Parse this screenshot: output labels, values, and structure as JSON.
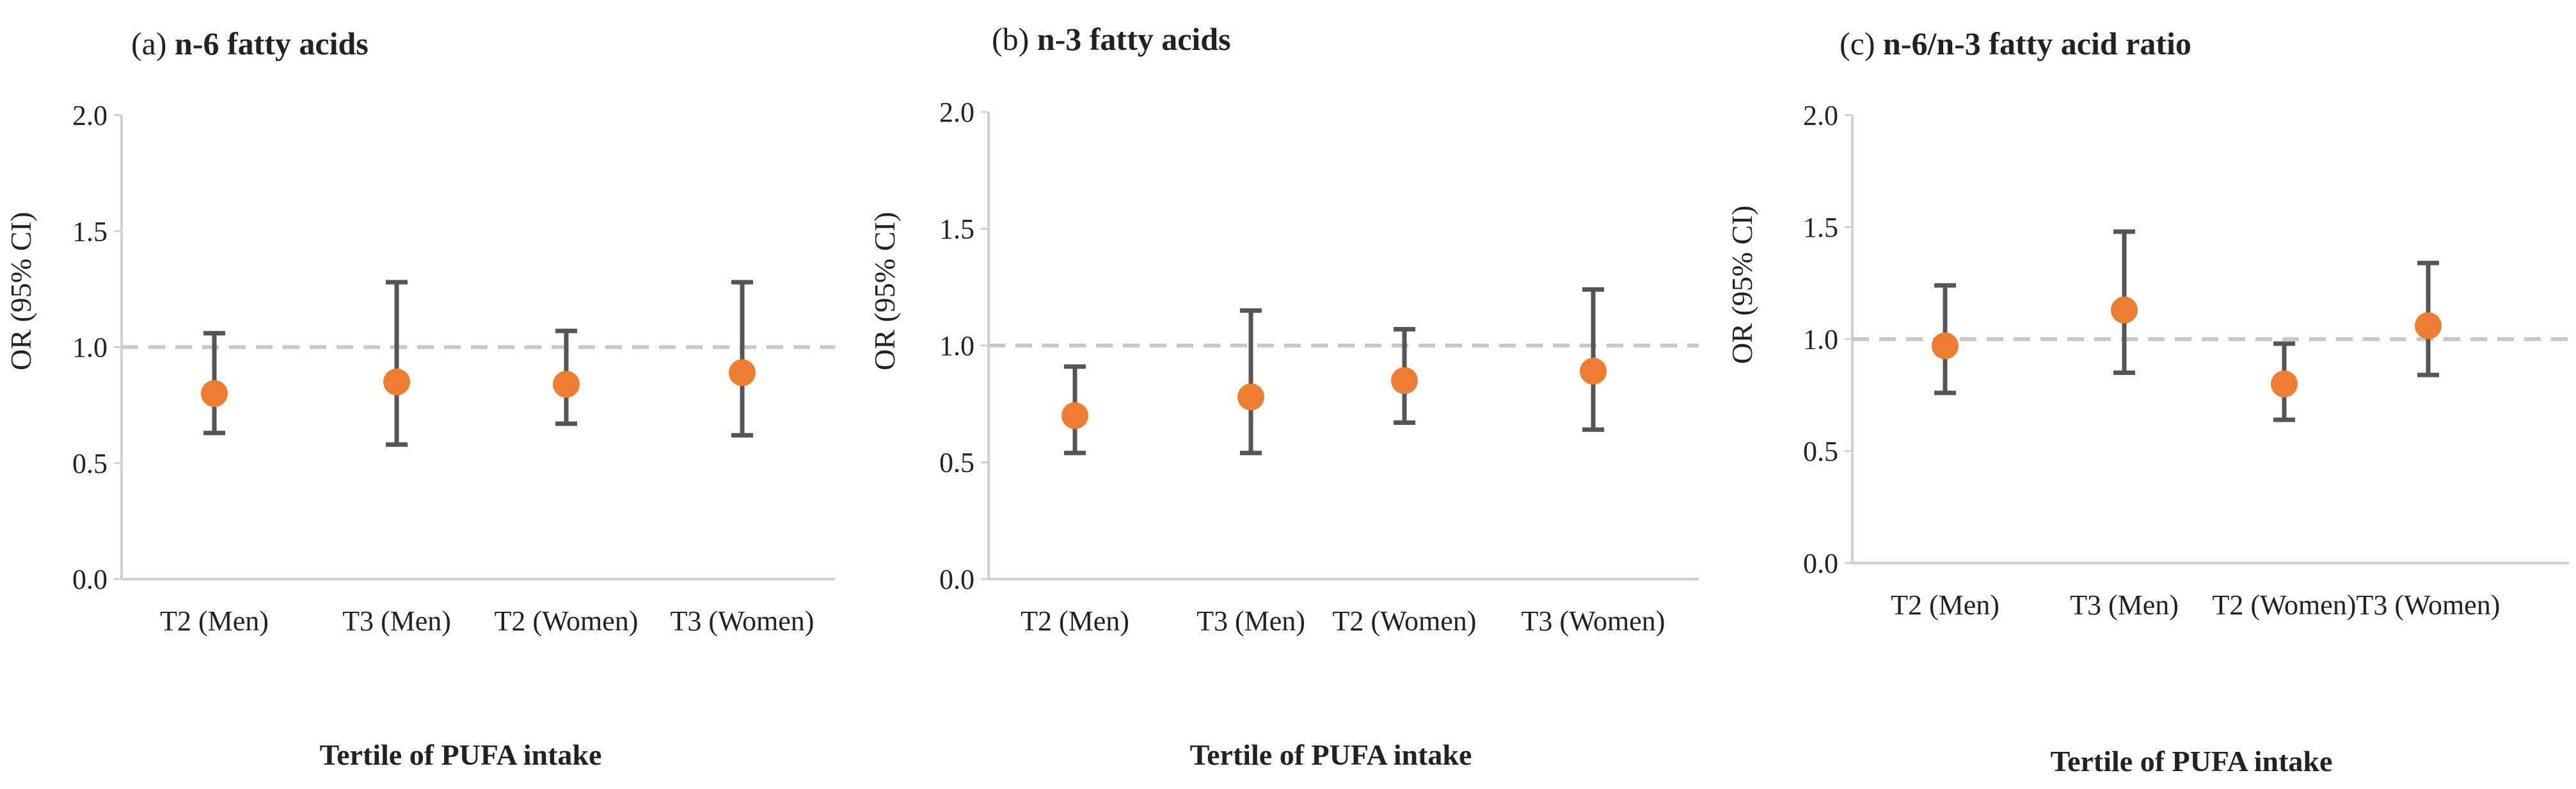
{
  "colors": {
    "point": "#ED7D31",
    "error_bar": "#555555",
    "reference_line": "#C8C8C8",
    "axis": "#D0D0D0",
    "text": "#222222"
  },
  "chart_data": [
    {
      "type": "scatter",
      "panel_label": "(a)",
      "title": "n-6 fatty acids",
      "xlabel": "Tertile of PUFA intake",
      "ylabel": "OR (95% CI)",
      "categories": [
        "T2 (Men)",
        "T3 (Men)",
        "T2 (Women)",
        "T3 (Women)"
      ],
      "values": [
        0.8,
        0.85,
        0.84,
        0.89
      ],
      "ci_lower": [
        0.63,
        0.58,
        0.67,
        0.62
      ],
      "ci_upper": [
        1.06,
        1.28,
        1.07,
        1.28
      ],
      "reference_line": 1.0,
      "ylim": [
        0,
        2.0
      ],
      "yticks": [
        "0.0",
        "0.5",
        "1.0",
        "1.5",
        "2.0"
      ],
      "grid": false
    },
    {
      "type": "scatter",
      "panel_label": "(b)",
      "title": "n-3 fatty acids",
      "xlabel": "Tertile of PUFA intake",
      "ylabel": "OR (95% CI)",
      "categories": [
        "T2 (Men)",
        "T3 (Men)",
        "T2 (Women)",
        "T3 (Women)"
      ],
      "values": [
        0.7,
        0.78,
        0.85,
        0.89
      ],
      "ci_lower": [
        0.54,
        0.54,
        0.67,
        0.64
      ],
      "ci_upper": [
        0.91,
        1.15,
        1.07,
        1.24
      ],
      "reference_line": 1.0,
      "ylim": [
        0,
        2.0
      ],
      "yticks": [
        "0.0",
        "0.5",
        "1.0",
        "1.5",
        "2.0"
      ],
      "grid": false
    },
    {
      "type": "scatter",
      "panel_label": "(c)",
      "title": "n-6/n-3 fatty acid ratio",
      "xlabel": "Tertile of PUFA intake",
      "ylabel": "OR (95% CI)",
      "categories": [
        "T2 (Men)",
        "T3 (Men)",
        "T2 (Women)",
        "T3 (Women)"
      ],
      "values": [
        0.97,
        1.13,
        0.8,
        1.06
      ],
      "ci_lower": [
        0.76,
        0.85,
        0.64,
        0.84
      ],
      "ci_upper": [
        1.24,
        1.48,
        0.98,
        1.34
      ],
      "reference_line": 1.0,
      "ylim": [
        0,
        2.0
      ],
      "yticks": [
        "0.0",
        "0.5",
        "1.0",
        "1.5",
        "2.0"
      ],
      "grid": false
    }
  ]
}
